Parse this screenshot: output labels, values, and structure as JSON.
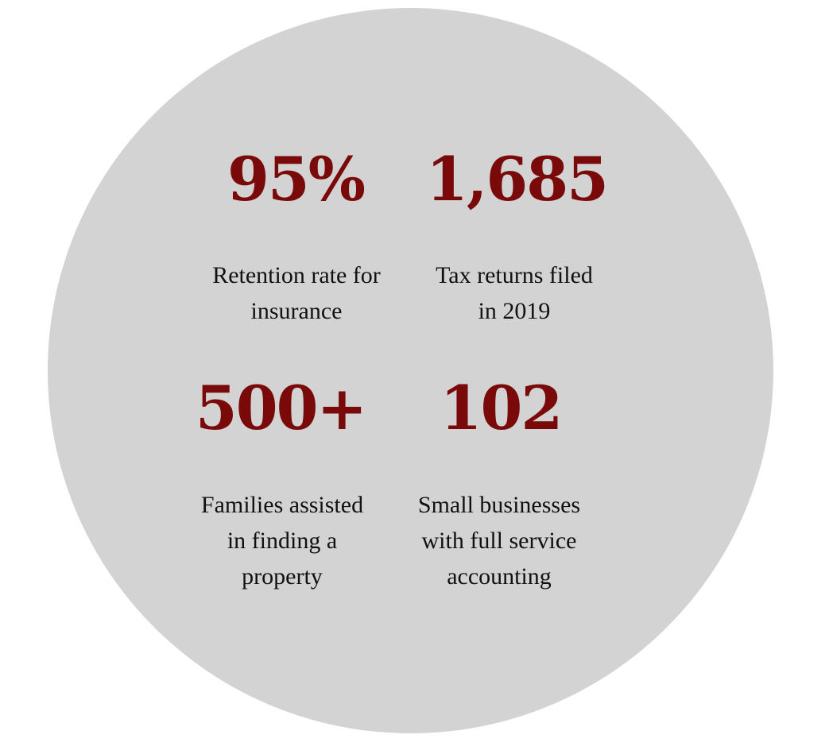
{
  "colors": {
    "circle_background": "#d3d3d3",
    "stat_value": "#7a0a0a",
    "stat_label": "#111111"
  },
  "stats": [
    {
      "value": "95%",
      "label": "Retention rate for\ninsurance"
    },
    {
      "value": "1,685",
      "label": "Tax returns filed\nin 2019"
    },
    {
      "value": "500+",
      "label": "Families assisted\nin finding a\nproperty"
    },
    {
      "value": "102",
      "label": "Small businesses\nwith full service\naccounting"
    }
  ]
}
